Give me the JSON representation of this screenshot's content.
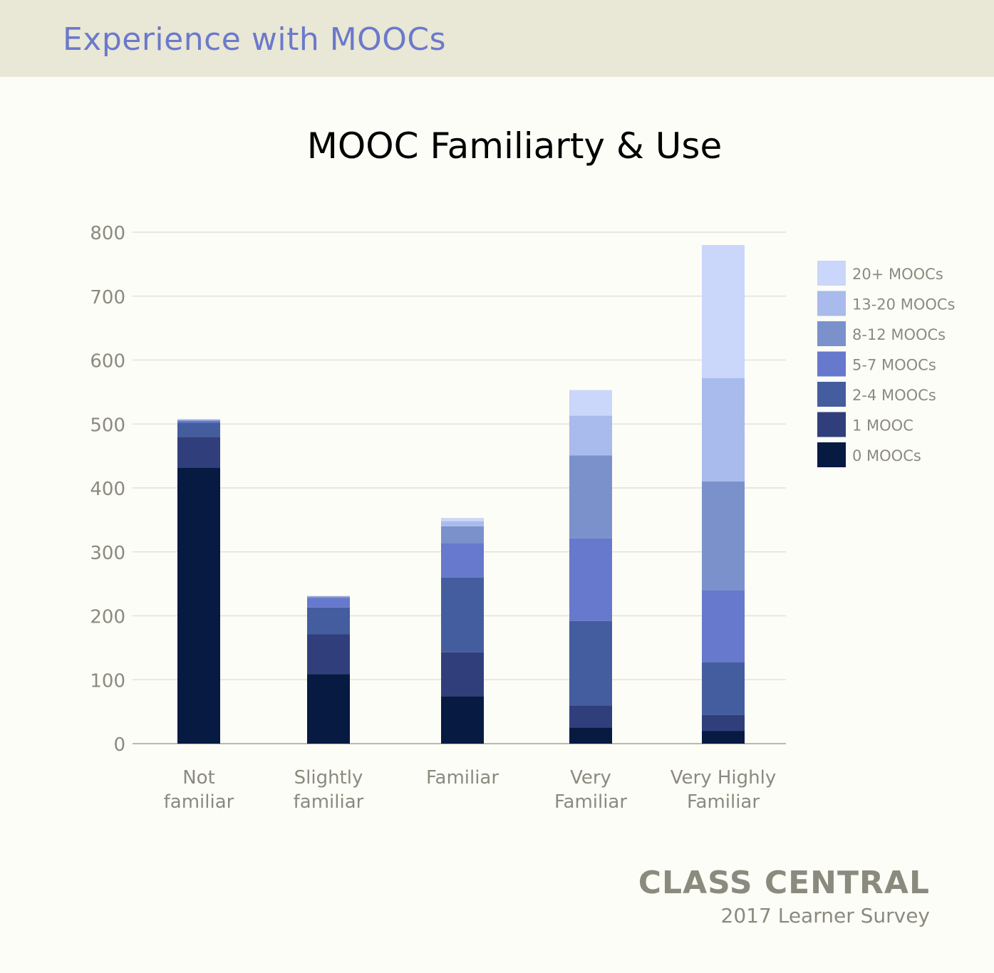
{
  "header": {
    "title": "Experience with MOOCs"
  },
  "brand": {
    "name": "CLASS CENTRAL",
    "subtitle": "2017 Learner Survey"
  },
  "chart_data": {
    "type": "bar",
    "stacked": true,
    "title": "MOOC Familiarty & Use",
    "xlabel": "",
    "ylabel": "",
    "ylim": [
      0,
      800
    ],
    "yticks": [
      0,
      100,
      200,
      300,
      400,
      500,
      600,
      700,
      800
    ],
    "grid": true,
    "legend_position": "right",
    "categories": [
      [
        "Not",
        "familiar"
      ],
      [
        "Slightly",
        "familiar"
      ],
      [
        "Familiar"
      ],
      [
        "Very",
        "Familiar"
      ],
      [
        "Very Highly",
        "Familiar"
      ]
    ],
    "series": [
      {
        "name": "0 MOOCs",
        "color": "#061a42",
        "values": [
          432,
          109,
          74,
          25,
          20
        ]
      },
      {
        "name": "1 MOOC",
        "color": "#303f7c",
        "values": [
          48,
          62,
          69,
          35,
          25
        ]
      },
      {
        "name": "2-4 MOOCs",
        "color": "#445d9e",
        "values": [
          22,
          42,
          117,
          132,
          82
        ]
      },
      {
        "name": "5-7 MOOCs",
        "color": "#6679cd",
        "values": [
          3,
          15,
          54,
          129,
          113
        ]
      },
      {
        "name": "8-12 MOOCs",
        "color": "#7a91cb",
        "values": [
          1,
          2,
          26,
          130,
          170
        ]
      },
      {
        "name": "13-20 MOOCs",
        "color": "#a9baec",
        "values": [
          1,
          1,
          8,
          62,
          162
        ]
      },
      {
        "name": "20+ MOOCs",
        "color": "#cad6fa",
        "values": [
          1,
          0,
          5,
          40,
          208
        ]
      }
    ]
  }
}
